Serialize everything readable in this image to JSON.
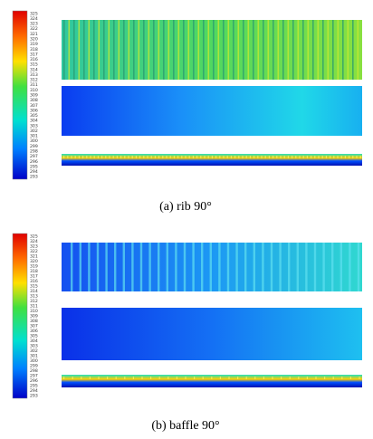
{
  "panels": [
    {
      "caption": "(a)  rib  90°",
      "colorbar_labels": [
        325,
        324,
        323,
        322,
        321,
        320,
        319,
        318,
        317,
        316,
        315,
        314,
        313,
        312,
        311,
        310,
        309,
        308,
        307,
        306,
        305,
        304,
        303,
        302,
        301,
        300,
        299,
        298,
        297,
        296,
        295,
        294,
        293
      ]
    },
    {
      "caption": "(b)  baffle  90°",
      "colorbar_labels": [
        325,
        324,
        323,
        322,
        321,
        320,
        319,
        318,
        317,
        316,
        315,
        314,
        313,
        312,
        311,
        310,
        309,
        308,
        307,
        306,
        305,
        304,
        303,
        302,
        301,
        300,
        299,
        298,
        297,
        296,
        295,
        294,
        293
      ]
    }
  ]
}
